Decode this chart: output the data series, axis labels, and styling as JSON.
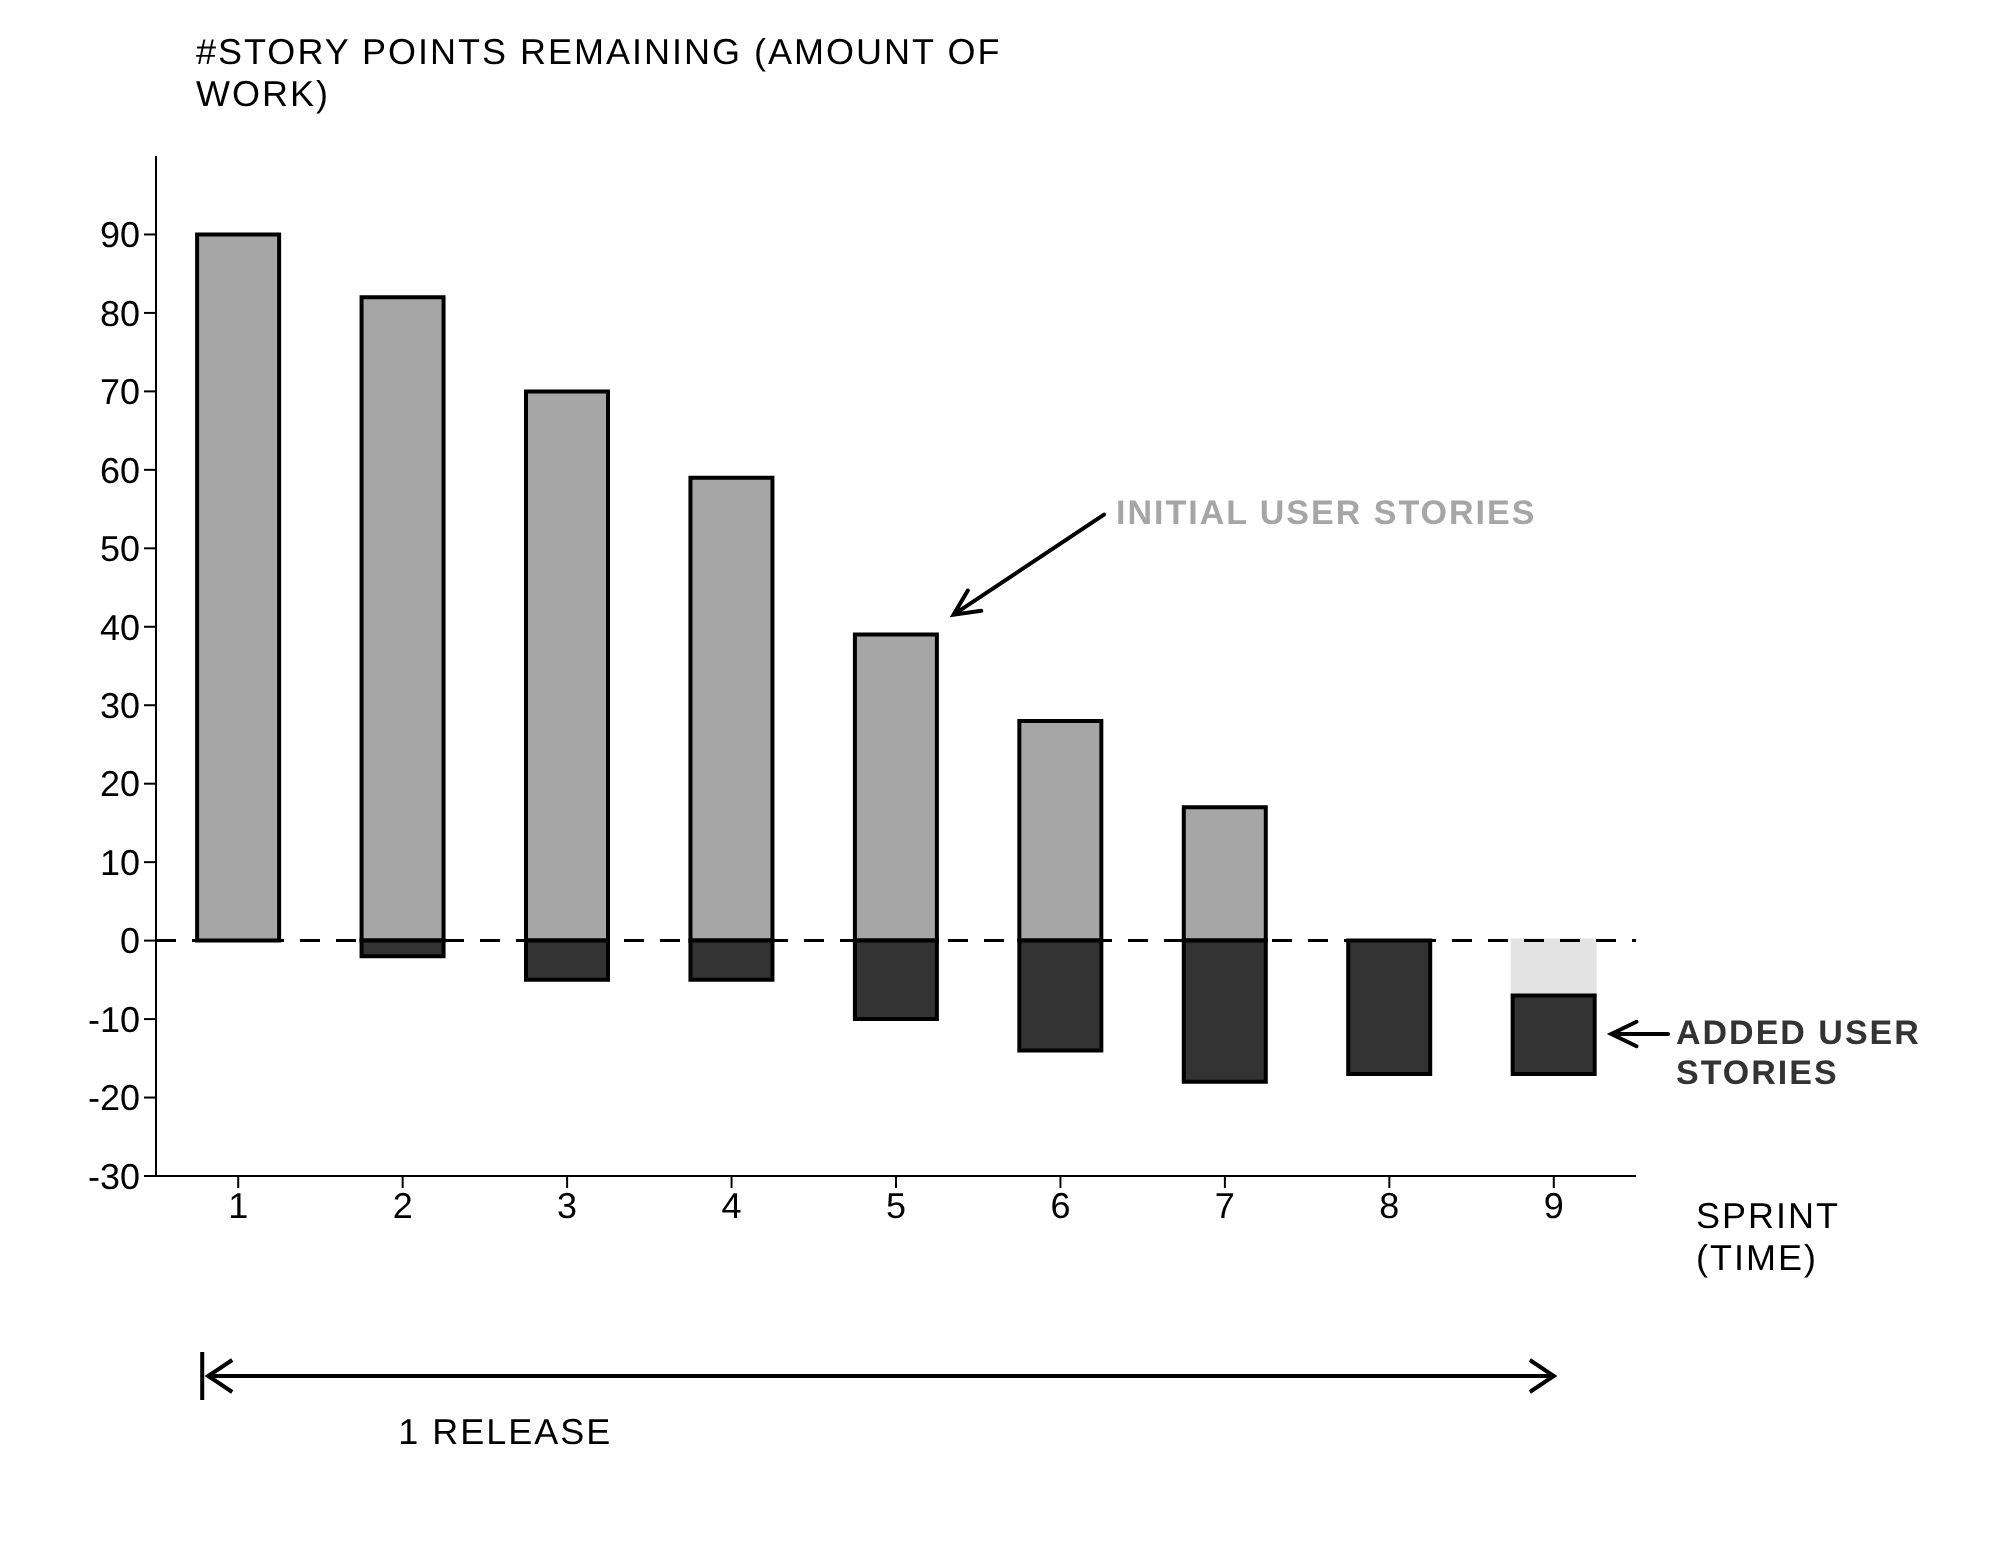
{
  "chart_data": {
    "type": "bar",
    "ylabel": "#STORY POINTS REMAINING (AMOUNT OF WORK)",
    "xlabel": "SPRINT (TIME)",
    "categories": [
      "1",
      "2",
      "3",
      "4",
      "5",
      "6",
      "7",
      "8",
      "9"
    ],
    "series": [
      {
        "name": "INITIAL USER STORIES",
        "color": "#a6a6a6",
        "values": [
          90,
          82,
          70,
          59,
          39,
          28,
          17,
          0,
          null
        ]
      },
      {
        "color": "#e3e3e3",
        "values": [
          null,
          null,
          null,
          null,
          null,
          null,
          null,
          null,
          -7
        ]
      },
      {
        "name": "ADDED USER STORIES",
        "color": "#333333",
        "values": [
          0,
          -2,
          -5,
          -5,
          -10,
          -14,
          -18,
          -17,
          -10
        ]
      }
    ],
    "stacked": true,
    "ylim": [
      -30,
      100
    ],
    "yticks": [
      -30,
      -20,
      -10,
      0,
      10,
      20,
      30,
      40,
      50,
      60,
      70,
      80,
      90
    ],
    "grid": false,
    "legend": "right",
    "ref_lines": [
      {
        "axis": "y",
        "value": 0,
        "line_style": "dashed",
        "color": "#000000"
      }
    ],
    "annotations": [
      "1 RELEASE"
    ]
  }
}
